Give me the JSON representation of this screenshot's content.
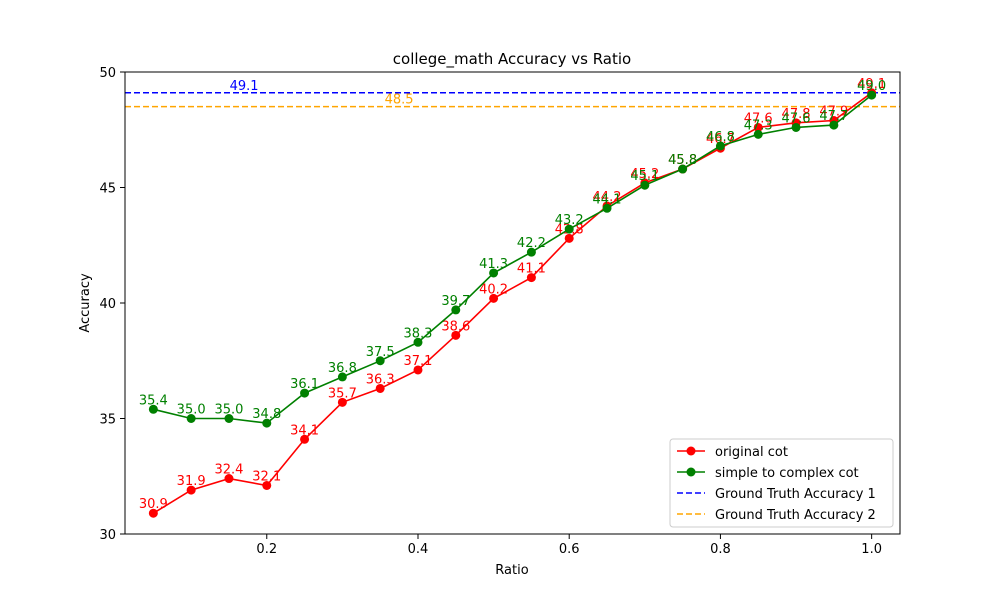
{
  "chart_data": {
    "type": "line",
    "title": "college_math Accuracy vs Ratio",
    "xlabel": "Ratio",
    "ylabel": "Accuracy",
    "xlim": [
      0.0125,
      1.0375
    ],
    "ylim": [
      30,
      50
    ],
    "xticks": [
      0.2,
      0.4,
      0.6,
      0.8,
      1.0
    ],
    "xtick_labels": [
      "0.2",
      "0.4",
      "0.6",
      "0.8",
      "1.0"
    ],
    "yticks": [
      30,
      35,
      40,
      45,
      50
    ],
    "ytick_labels": [
      "30",
      "35",
      "40",
      "45",
      "50"
    ],
    "grid": false,
    "legend_position": "lower-right",
    "x": [
      0.05,
      0.1,
      0.15,
      0.2,
      0.25,
      0.3,
      0.35,
      0.4,
      0.45,
      0.5,
      0.55,
      0.6,
      0.65,
      0.7,
      0.75,
      0.8,
      0.85,
      0.9,
      0.95,
      1.0
    ],
    "series": [
      {
        "name": "original cot",
        "color": "#ff0000",
        "marker": "circle",
        "values": [
          30.9,
          31.9,
          32.4,
          32.1,
          34.1,
          35.7,
          36.3,
          37.1,
          38.6,
          40.2,
          41.1,
          42.8,
          44.2,
          45.2,
          45.8,
          46.7,
          47.6,
          47.8,
          47.9,
          49.1
        ],
        "labels": [
          "30.9",
          "31.9",
          "32.4",
          "32.1",
          "34.1",
          "35.7",
          "36.3",
          "37.1",
          "38.6",
          "40.2",
          "41.1",
          "42.8",
          "44.2",
          "45.2",
          "45.8",
          "46.7",
          "47.6",
          "47.8",
          "47.9",
          "49.1"
        ]
      },
      {
        "name": "simple to complex cot",
        "color": "#008000",
        "marker": "circle",
        "values": [
          35.4,
          35.0,
          35.0,
          34.8,
          36.1,
          36.8,
          37.5,
          38.3,
          39.7,
          41.3,
          42.2,
          43.2,
          44.1,
          45.1,
          45.8,
          46.8,
          47.3,
          47.6,
          47.7,
          49.0
        ],
        "labels": [
          "35.4",
          "35.0",
          "35.0",
          "34.8",
          "36.1",
          "36.8",
          "37.5",
          "38.3",
          "39.7",
          "41.3",
          "42.2",
          "43.2",
          "44.1",
          "45.1",
          "45.8",
          "46.8",
          "47.3",
          "47.6",
          "47.7",
          "49.0"
        ]
      }
    ],
    "reference_lines": [
      {
        "name": "Ground Truth Accuracy 1",
        "value": 49.1,
        "label": "49.1",
        "color": "#0000ff",
        "label_x": 0.17
      },
      {
        "name": "Ground Truth Accuracy 2",
        "value": 48.5,
        "label": "48.5",
        "color": "#ffa500",
        "label_x": 0.375
      }
    ]
  }
}
